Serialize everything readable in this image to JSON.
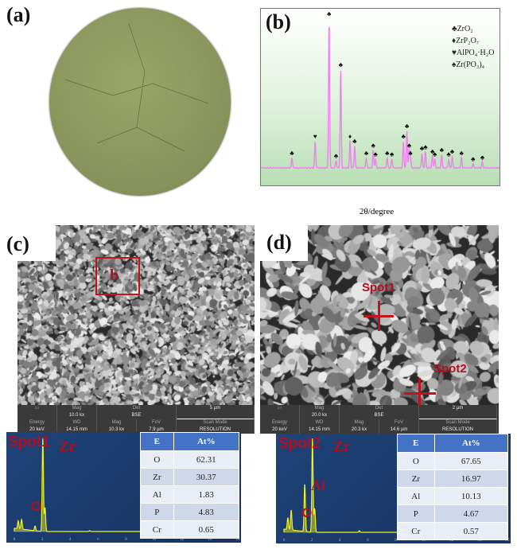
{
  "panels": {
    "a": "(a)",
    "b": "(b)",
    "c": "(c)",
    "d": "(d)"
  },
  "chart_data": {
    "type": "line",
    "xlabel": "2θ/degree",
    "ylabel": "",
    "grid": false,
    "legend_placement": "top-right",
    "line_color": "#ee82ee",
    "legend": [
      {
        "symbol": "♣",
        "label": "ZrO₂"
      },
      {
        "symbol": "♦",
        "label": "ZrP₂O₇"
      },
      {
        "symbol": "♥",
        "label": "AlPO₄·H₂O"
      },
      {
        "symbol": "♠",
        "label": "Zr(PO₃)₄"
      }
    ],
    "peaks_note_units": "relative position on unlabeled axis (0-100), relative intensity (%)",
    "peaks": [
      [
        12,
        7,
        "♣"
      ],
      [
        22,
        18,
        "♥"
      ],
      [
        28,
        100,
        "♣"
      ],
      [
        31,
        5,
        "♣"
      ],
      [
        33,
        66,
        "♣"
      ],
      [
        37,
        18,
        "♦"
      ],
      [
        39,
        15,
        "♣"
      ],
      [
        44,
        7,
        "♣"
      ],
      [
        47,
        12,
        "♣"
      ],
      [
        48,
        6,
        "♣"
      ],
      [
        53,
        7,
        "♣"
      ],
      [
        55,
        6,
        "♣"
      ],
      [
        60,
        18,
        "♣"
      ],
      [
        61.5,
        25,
        "♣"
      ],
      [
        62.5,
        12,
        "♣"
      ],
      [
        63,
        7,
        "♣"
      ],
      [
        68,
        10,
        "♣"
      ],
      [
        69.5,
        11,
        "♣"
      ],
      [
        72.5,
        8,
        "♣"
      ],
      [
        73.5,
        6,
        "♣"
      ],
      [
        76.5,
        9,
        "♣"
      ],
      [
        79.5,
        6,
        "♣"
      ],
      [
        81,
        8,
        "♣"
      ],
      [
        85,
        7,
        "♣"
      ],
      [
        90,
        3,
        "♣"
      ],
      [
        94,
        4,
        "♣"
      ]
    ]
  },
  "sem_c": {
    "box_label": "b",
    "scale": "5 µm",
    "top": [
      [
        "Mag",
        "10.0 kx"
      ],
      [
        "Det",
        "BSE"
      ]
    ],
    "bottom": [
      [
        "Energy",
        "20 keV"
      ],
      [
        "WD",
        "14.15 mm"
      ],
      [
        "Mag",
        "10.3 kx"
      ],
      [
        "FoV",
        "7.9 µm"
      ],
      [
        "Scan Mode",
        "RESOLUTION"
      ]
    ]
  },
  "sem_d": {
    "spot1": "Spot1",
    "spot2": "Spot2",
    "scale": "2 µm",
    "top": [
      [
        "Mag",
        "20.0 kx"
      ],
      [
        "Det",
        "BSE"
      ]
    ],
    "bottom": [
      [
        "Energy",
        "20 keV"
      ],
      [
        "WD",
        "14.15 mm"
      ],
      [
        "Mag",
        "20.3 kx"
      ],
      [
        "FoV",
        "14.6 µm"
      ],
      [
        "Scan Mode",
        "RESOLUTION"
      ]
    ]
  },
  "eds_c": {
    "spot": "Spot1",
    "labels": [
      "Zr",
      "O"
    ],
    "header": [
      "E",
      "At%"
    ],
    "rows": [
      [
        "O",
        "62.31"
      ],
      [
        "Zr",
        "30.37"
      ],
      [
        "Al",
        "1.83"
      ],
      [
        "P",
        "4.83"
      ],
      [
        "Cr",
        "0.65"
      ]
    ],
    "xticks": [
      "0",
      "2",
      "4",
      "6",
      "8",
      "10",
      "12",
      "14",
      "16"
    ]
  },
  "eds_d": {
    "spot": "Spot2",
    "labels": [
      "Zr",
      "Al",
      "O"
    ],
    "header": [
      "E",
      "At%"
    ],
    "rows": [
      [
        "O",
        "67.65"
      ],
      [
        "Zr",
        "16.97"
      ],
      [
        "Al",
        "10.13"
      ],
      [
        "P",
        "4.67"
      ],
      [
        "Cr",
        "0.57"
      ]
    ],
    "xticks": [
      "0",
      "2",
      "4",
      "6",
      "8",
      "10",
      "12",
      "14",
      "16"
    ]
  }
}
